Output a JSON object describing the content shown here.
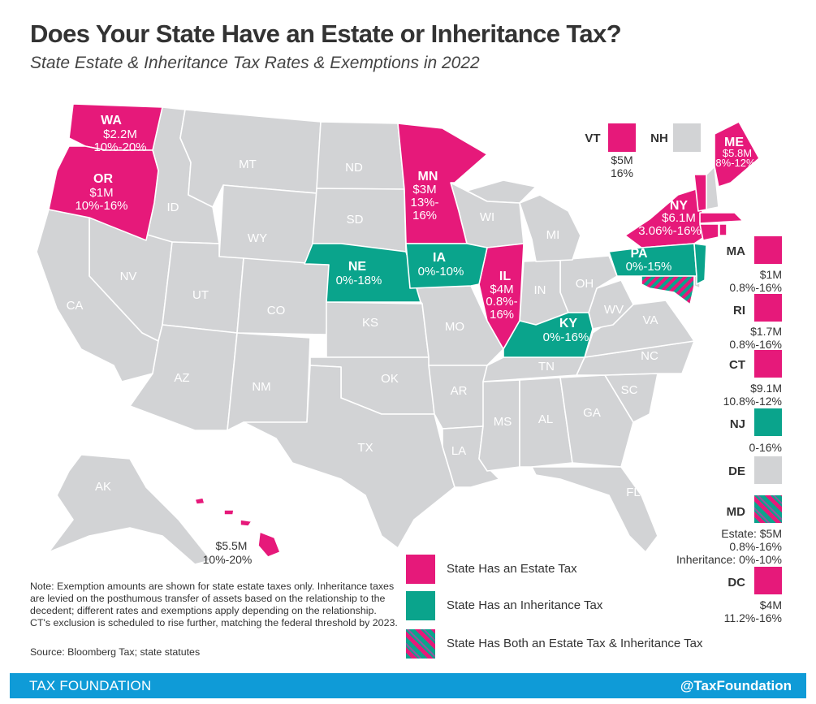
{
  "title": "Does Your State Have an Estate or Inheritance Tax?",
  "subtitle": "State Estate & Inheritance Tax Rates & Exemptions in 2022",
  "colors": {
    "estate": "#e6197a",
    "inheritance": "#0aa48c",
    "none": "#d2d3d5",
    "footer": "#0f9bd7"
  },
  "map_states": {
    "WA": {
      "code": "WA",
      "exemption": "$2.2M",
      "rate": "10%-20%"
    },
    "OR": {
      "code": "OR",
      "exemption": "$1M",
      "rate": "10%-16%"
    },
    "MN": {
      "code": "MN",
      "exemption": "$3M",
      "rate1": "13%-",
      "rate2": "16%"
    },
    "IL": {
      "code": "IL",
      "exemption": "$4M",
      "rate1": "0.8%-",
      "rate2": "16%"
    },
    "NY": {
      "code": "NY",
      "exemption": "$6.1M",
      "rate": "3.06%-16%"
    },
    "ME": {
      "code": "ME",
      "exemption": "$5.8M",
      "rate": "8%-12%"
    },
    "NE": {
      "code": "NE",
      "rate": "0%-18%"
    },
    "IA": {
      "code": "IA",
      "rate": "0%-10%"
    },
    "PA": {
      "code": "PA",
      "rate": "0%-15%"
    },
    "KY": {
      "code": "KY",
      "rate": "0%-16%"
    },
    "HI": {
      "exemption": "$5.5M",
      "rate": "10%-20%"
    }
  },
  "gray_labels": [
    "MT",
    "ND",
    "SD",
    "WY",
    "ID",
    "NV",
    "UT",
    "CA",
    "CO",
    "KS",
    "MO",
    "OK",
    "AZ",
    "NM",
    "TX",
    "AR",
    "LA",
    "MS",
    "AL",
    "GA",
    "SC",
    "NC",
    "TN",
    "FL",
    "IN",
    "OH",
    "WV",
    "VA",
    "MI",
    "WI",
    "AK"
  ],
  "inset": {
    "VT": {
      "code": "VT",
      "exemption": "$5M",
      "rate": "16%"
    },
    "NH": {
      "code": "NH"
    }
  },
  "side": [
    {
      "code": "MA",
      "line1": "$1M",
      "line2": "0.8%-16%",
      "type": "estate"
    },
    {
      "code": "RI",
      "line1": "$1.7M",
      "line2": "0.8%-16%",
      "type": "estate"
    },
    {
      "code": "CT",
      "line1": "$9.1M",
      "line2": "10.8%-12%",
      "type": "estate"
    },
    {
      "code": "NJ",
      "line1": "0-16%",
      "line2": "",
      "type": "inheritance"
    },
    {
      "code": "DE",
      "line1": "",
      "line2": "",
      "type": "none"
    },
    {
      "code": "MD",
      "line1": "Estate: $5M",
      "line2": "0.8%-16%",
      "line3": "Inheritance: 0%-10%",
      "type": "both"
    },
    {
      "code": "DC",
      "line1": "$4M",
      "line2": "11.2%-16%",
      "type": "estate"
    }
  ],
  "legend": {
    "estate": "State Has an Estate Tax",
    "inheritance": "State Has an Inheritance Tax",
    "both": "State Has Both an Estate Tax & Inheritance Tax"
  },
  "note": "Note: Exemption amounts are shown for state estate taxes only. Inheritance taxes are levied on the posthumous transfer of assets based on the relationship to the decedent; different rates and exemptions apply depending on the relationship. CT's exclusion is scheduled to rise further, matching the federal threshold by 2023.",
  "source": "Source: Bloomberg Tax; state statutes",
  "footer": {
    "brand": "TAX FOUNDATION",
    "handle": "@TaxFoundation"
  }
}
